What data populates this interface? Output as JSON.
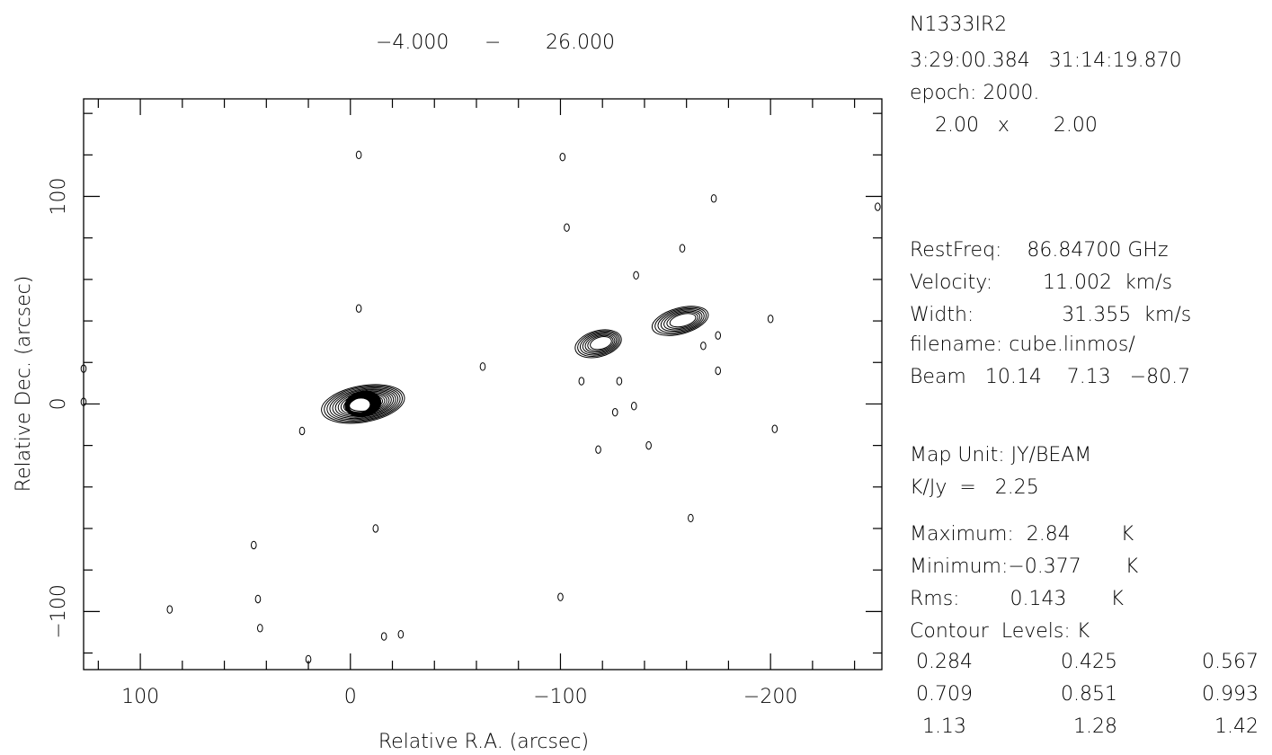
{
  "chart_data": {
    "type": "contour",
    "range_label_min": "−4.000",
    "range_label_sep": "−",
    "range_label_max": "26.000",
    "xlabel": "Relative R.A. (arcsec)",
    "ylabel": "Relative Dec. (arcsec)",
    "xlim": [
      127,
      -253
    ],
    "ylim": [
      -128,
      147
    ],
    "x_ticks": [
      {
        "value": 100,
        "label": "100"
      },
      {
        "value": 0,
        "label": "0"
      },
      {
        "value": -100,
        "label": "−100"
      },
      {
        "value": -200,
        "label": "−200"
      }
    ],
    "y_ticks": [
      {
        "value": 100,
        "label": "100"
      },
      {
        "value": 0,
        "label": "0"
      },
      {
        "value": -100,
        "label": "−100"
      }
    ],
    "contour_levels": [
      0.284,
      0.425,
      0.567,
      0.709,
      0.851,
      0.993,
      1.13,
      1.28,
      1.42
    ],
    "sources": [
      {
        "name": "main",
        "x": -6,
        "y": 0,
        "peak": 2.84,
        "rings": 11,
        "rx": 16,
        "ry": 7,
        "angle": -10
      },
      {
        "name": "nw-a",
        "x": -118,
        "y": 29,
        "peak": 1.3,
        "rings": 7,
        "rx": 9,
        "ry": 5,
        "angle": -15
      },
      {
        "name": "nw-b",
        "x": -157,
        "y": 40,
        "peak": 1.4,
        "rings": 7,
        "rx": 11,
        "ry": 5,
        "angle": -15
      }
    ],
    "noise_blobs": [
      {
        "x": -4,
        "y": 120
      },
      {
        "x": -101,
        "y": 119
      },
      {
        "x": -103,
        "y": 85
      },
      {
        "x": -173,
        "y": 99
      },
      {
        "x": -158,
        "y": 75
      },
      {
        "x": -136,
        "y": 62
      },
      {
        "x": -4,
        "y": 46
      },
      {
        "x": -200,
        "y": 41
      },
      {
        "x": -175,
        "y": 33
      },
      {
        "x": -168,
        "y": 28
      },
      {
        "x": -63,
        "y": 18
      },
      {
        "x": -128,
        "y": 11
      },
      {
        "x": -175,
        "y": 16
      },
      {
        "x": -110,
        "y": 11
      },
      {
        "x": -126,
        "y": -4
      },
      {
        "x": -135,
        "y": -1
      },
      {
        "x": -142,
        "y": -20
      },
      {
        "x": -118,
        "y": -22
      },
      {
        "x": -202,
        "y": -12
      },
      {
        "x": -162,
        "y": -55
      },
      {
        "x": 23,
        "y": -13
      },
      {
        "x": -12,
        "y": -60
      },
      {
        "x": 46,
        "y": -68
      },
      {
        "x": 44,
        "y": -94
      },
      {
        "x": 43,
        "y": -108
      },
      {
        "x": -100,
        "y": -93
      },
      {
        "x": -16,
        "y": -112
      },
      {
        "x": -24,
        "y": -111
      },
      {
        "x": 20,
        "y": -123
      },
      {
        "x": 86,
        "y": -99
      },
      {
        "x": 127,
        "y": 17
      },
      {
        "x": 127,
        "y": 1
      },
      {
        "x": -251,
        "y": 95
      }
    ]
  },
  "info": {
    "source": "N1333IR2",
    "coords": "3:29:00.384   31:14:19.870",
    "epoch": "epoch: 2000.",
    "pixel": "    2.00   x       2.00",
    "restfreq": "RestFreq:    86.84700 GHz",
    "velocity": "Velocity:        11.002  km/s",
    "width": "Width:              31.355  km/s",
    "filename": "filename: cube.linmos/",
    "beam": "Beam   10.14    7.13   −80.7",
    "map_unit": "Map Unit: JY/BEAM",
    "kjy": "K/Jy  =   2.25",
    "maximum": "Maximum:  2.84        K",
    "minimum": "Minimum:−0.377       K",
    "rms": "Rms:        0.143       K",
    "contour_title": "Contour  Levels: K",
    "levels_row1": [
      " 0.284",
      "0.425",
      "0.567"
    ],
    "levels_row2": [
      " 0.709",
      "0.851",
      "0.993"
    ],
    "levels_row3": [
      "  1.13",
      "  1.28",
      "  1.42"
    ]
  }
}
